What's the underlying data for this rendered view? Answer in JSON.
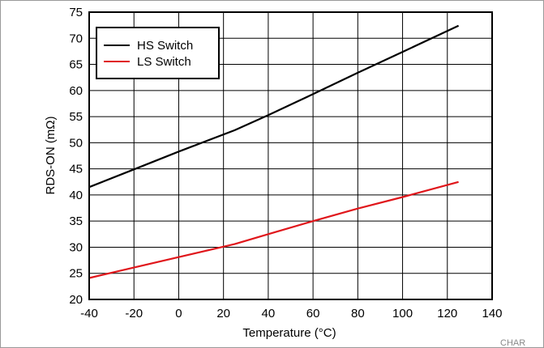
{
  "chart_data": {
    "type": "line",
    "xlabel": "Temperature (°C)",
    "ylabel": "RDS-ON (mΩ)",
    "xlim": [
      -40,
      140
    ],
    "ylim": [
      20,
      75
    ],
    "xticks": [
      -40,
      -20,
      0,
      20,
      40,
      60,
      80,
      100,
      120,
      140
    ],
    "yticks": [
      20,
      25,
      30,
      35,
      40,
      45,
      50,
      55,
      60,
      65,
      70,
      75
    ],
    "grid": true,
    "legend_position": "top-left",
    "series": [
      {
        "name": "HS Switch",
        "color": "#000000",
        "x": [
          -40,
          -20,
          0,
          25,
          40,
          60,
          80,
          100,
          125
        ],
        "y": [
          41.5,
          44.9,
          48.3,
          52.4,
          55.3,
          59.3,
          63.4,
          67.4,
          72.4
        ]
      },
      {
        "name": "LS Switch",
        "color": "#e0161b",
        "x": [
          -40,
          -20,
          0,
          25,
          40,
          60,
          80,
          100,
          125
        ],
        "y": [
          24.1,
          26.1,
          28.1,
          30.6,
          32.5,
          35.0,
          37.4,
          39.6,
          42.5
        ]
      }
    ],
    "corner_note": "CHAR"
  }
}
